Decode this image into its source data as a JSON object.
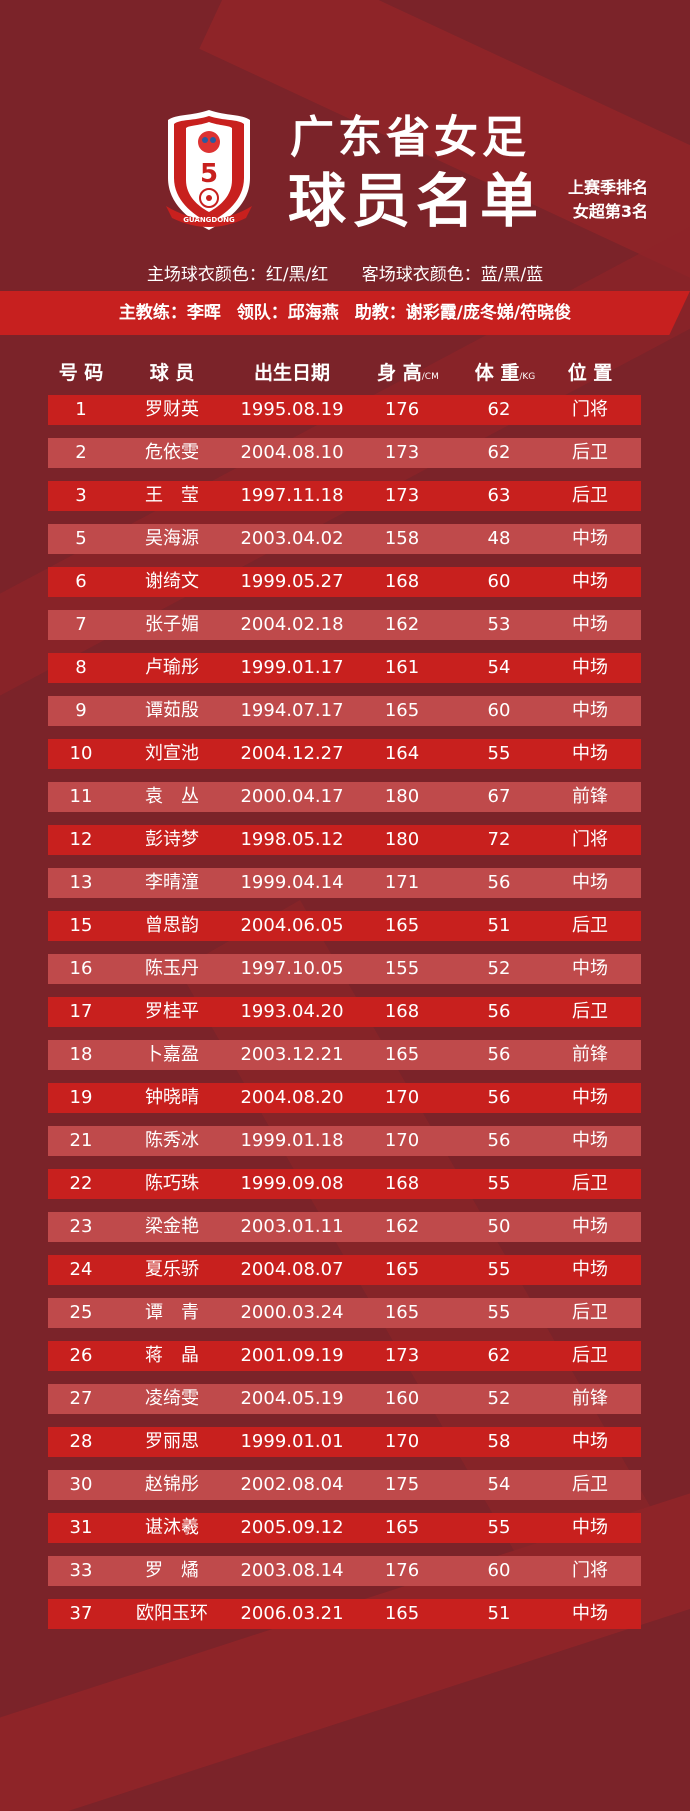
{
  "colors": {
    "background": "#7b2329",
    "row_primary": "#c8201e",
    "row_alt": "#bf4a4b",
    "band": "#c7201f"
  },
  "logo": {
    "text": "GUANGDONG",
    "number": "5"
  },
  "title": {
    "line1": "广东省女足",
    "line2": "球员名单"
  },
  "season_rank": {
    "line1": "上赛季排名",
    "line2": "女超第3名"
  },
  "kits": {
    "home": "主场球衣颜色：红/黑/红",
    "away": "客场球衣颜色：蓝/黑/蓝"
  },
  "staff": {
    "head_coach": "主教练：李晖",
    "team_leader": "领队：邱海燕",
    "assistants": "助教：谢彩霞/庞冬娣/符晓俊"
  },
  "columns": {
    "number": "号 码",
    "player": "球 员",
    "birth": "出生日期",
    "height": "身 高",
    "height_unit": "/CM",
    "weight": "体 重",
    "weight_unit": "/KG",
    "position": "位 置"
  },
  "players": [
    [
      "1",
      "罗财英",
      "1995.08.19",
      "176",
      "62",
      "门将"
    ],
    [
      "2",
      "危依雯",
      "2004.08.10",
      "173",
      "62",
      "后卫"
    ],
    [
      "3",
      "王　莹",
      "1997.11.18",
      "173",
      "63",
      "后卫"
    ],
    [
      "5",
      "吴海源",
      "2003.04.02",
      "158",
      "48",
      "中场"
    ],
    [
      "6",
      "谢绮文",
      "1999.05.27",
      "168",
      "60",
      "中场"
    ],
    [
      "7",
      "张子媚",
      "2004.02.18",
      "162",
      "53",
      "中场"
    ],
    [
      "8",
      "卢瑜彤",
      "1999.01.17",
      "161",
      "54",
      "中场"
    ],
    [
      "9",
      "谭茹殷",
      "1994.07.17",
      "165",
      "60",
      "中场"
    ],
    [
      "10",
      "刘宣池",
      "2004.12.27",
      "164",
      "55",
      "中场"
    ],
    [
      "11",
      "袁　丛",
      "2000.04.17",
      "180",
      "67",
      "前锋"
    ],
    [
      "12",
      "彭诗梦",
      "1998.05.12",
      "180",
      "72",
      "门将"
    ],
    [
      "13",
      "李晴潼",
      "1999.04.14",
      "171",
      "56",
      "中场"
    ],
    [
      "15",
      "曾思韵",
      "2004.06.05",
      "165",
      "51",
      "后卫"
    ],
    [
      "16",
      "陈玉丹",
      "1997.10.05",
      "155",
      "52",
      "中场"
    ],
    [
      "17",
      "罗桂平",
      "1993.04.20",
      "168",
      "56",
      "后卫"
    ],
    [
      "18",
      "卜嘉盈",
      "2003.12.21",
      "165",
      "56",
      "前锋"
    ],
    [
      "19",
      "钟晓晴",
      "2004.08.20",
      "170",
      "56",
      "中场"
    ],
    [
      "21",
      "陈秀冰",
      "1999.01.18",
      "170",
      "56",
      "中场"
    ],
    [
      "22",
      "陈巧珠",
      "1999.09.08",
      "168",
      "55",
      "后卫"
    ],
    [
      "23",
      "梁金艳",
      "2003.01.11",
      "162",
      "50",
      "中场"
    ],
    [
      "24",
      "夏乐骄",
      "2004.08.07",
      "165",
      "55",
      "中场"
    ],
    [
      "25",
      "谭　青",
      "2000.03.24",
      "165",
      "55",
      "后卫"
    ],
    [
      "26",
      "蒋　晶",
      "2001.09.19",
      "173",
      "62",
      "后卫"
    ],
    [
      "27",
      "凌绮雯",
      "2004.05.19",
      "160",
      "52",
      "前锋"
    ],
    [
      "28",
      "罗丽思",
      "1999.01.01",
      "170",
      "58",
      "中场"
    ],
    [
      "30",
      "赵锦彤",
      "2002.08.04",
      "175",
      "54",
      "后卫"
    ],
    [
      "31",
      "谌沐羲",
      "2005.09.12",
      "165",
      "55",
      "中场"
    ],
    [
      "33",
      "罗　燏",
      "2003.08.14",
      "176",
      "60",
      "门将"
    ],
    [
      "37",
      "欧阳玉环",
      "2006.03.21",
      "165",
      "51",
      "中场"
    ]
  ]
}
